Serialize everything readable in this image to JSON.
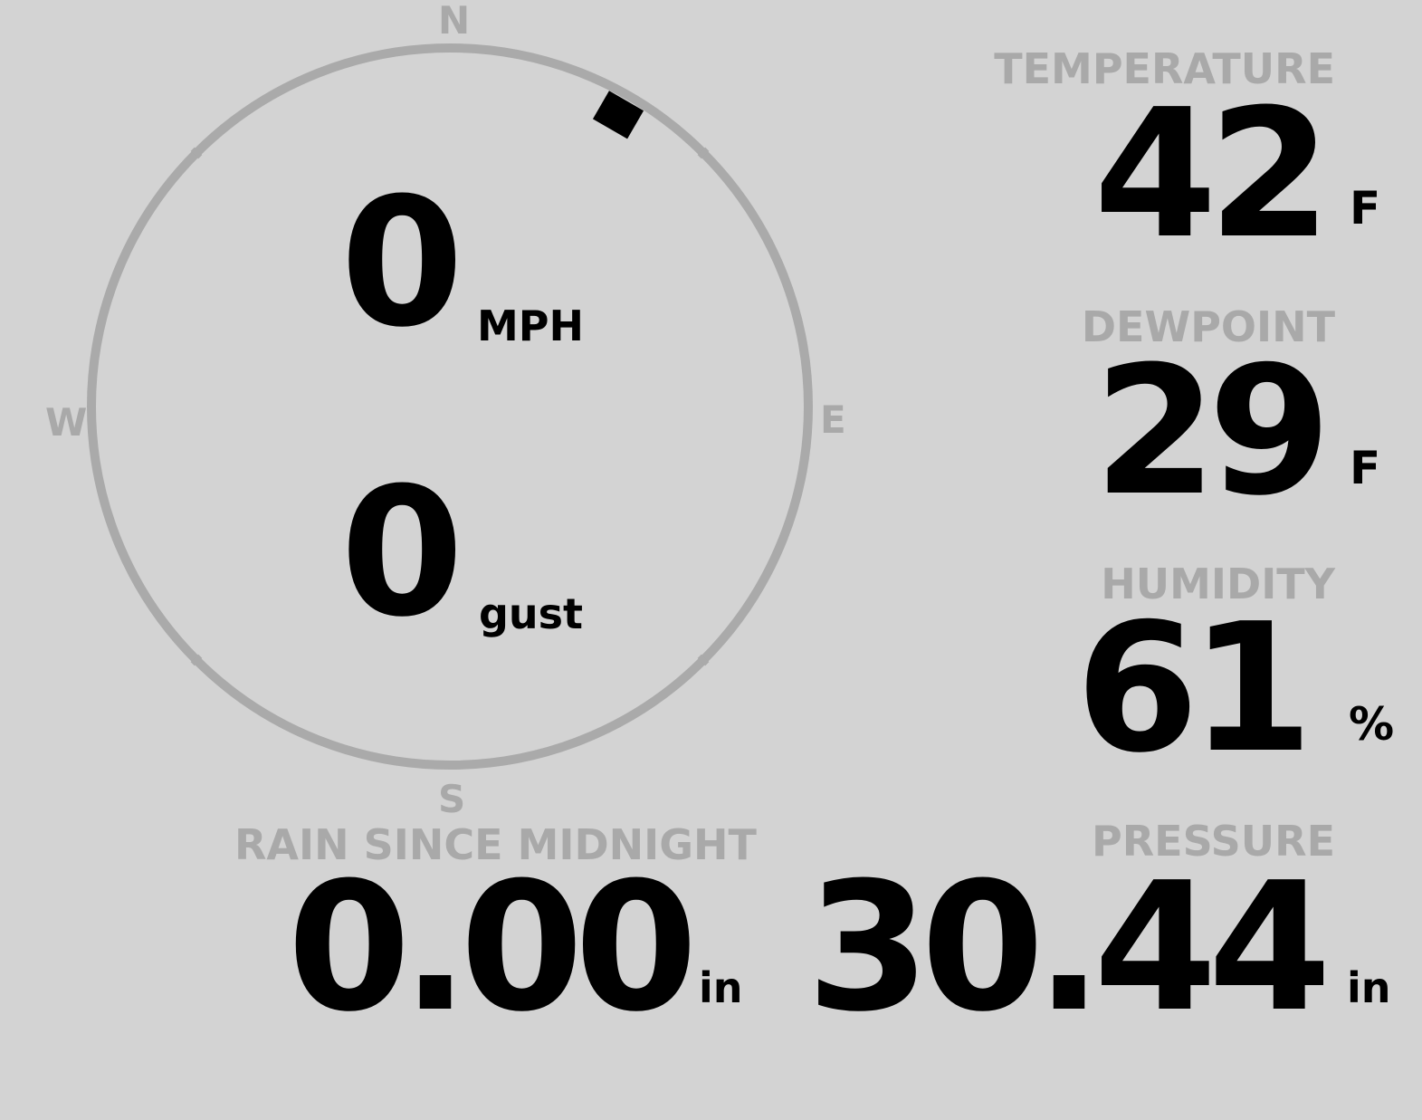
{
  "compass": {
    "north": "N",
    "east": "E",
    "south": "S",
    "west": "W",
    "wind_direction_deg": 30,
    "ring_color": "#aaaaaa",
    "marker_color": "#000000"
  },
  "wind": {
    "speed": "0",
    "speed_unit": "MPH",
    "gust": "0",
    "gust_unit": "gust"
  },
  "temperature": {
    "label": "TEMPERATURE",
    "value": "42",
    "unit": "F"
  },
  "dewpoint": {
    "label": "DEWPOINT",
    "value": "29",
    "unit": "F"
  },
  "humidity": {
    "label": "HUMIDITY",
    "value": "61",
    "unit": "%"
  },
  "rain": {
    "label": "RAIN SINCE MIDNIGHT",
    "value": "0.00",
    "unit": "in"
  },
  "pressure": {
    "label": "PRESSURE",
    "value": "30.44",
    "unit": "in"
  },
  "colors": {
    "background": "#d3d3d3",
    "label": "#a9a9a9",
    "value": "#000000"
  }
}
